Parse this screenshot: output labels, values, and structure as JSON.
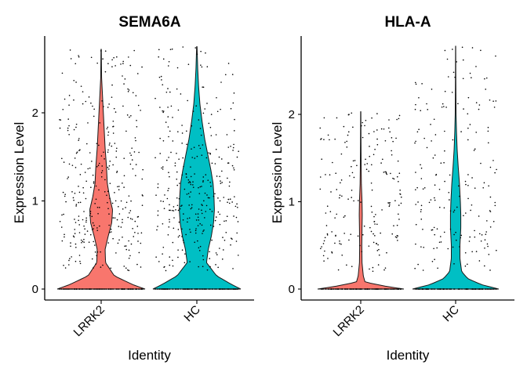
{
  "chart_data": [
    {
      "type": "violin",
      "title": "SEMA6A",
      "xlabel": "Identity",
      "ylabel": "Expression Level",
      "ylim": [
        0,
        2.75
      ],
      "yticks": [
        0,
        1,
        2
      ],
      "categories": [
        "LRRK2",
        "HC"
      ],
      "colors": [
        "#F8766D",
        "#00BFC4"
      ],
      "series": [
        {
          "category": "LRRK2",
          "max": 2.72,
          "density": [
            [
              0,
              1.0
            ],
            [
              0.05,
              0.72
            ],
            [
              0.15,
              0.3
            ],
            [
              0.3,
              0.1
            ],
            [
              0.45,
              0.09
            ],
            [
              0.6,
              0.16
            ],
            [
              0.75,
              0.24
            ],
            [
              0.9,
              0.26
            ],
            [
              1.05,
              0.19
            ],
            [
              1.2,
              0.14
            ],
            [
              1.4,
              0.12
            ],
            [
              1.6,
              0.09
            ],
            [
              1.8,
              0.07
            ],
            [
              2.0,
              0.05
            ],
            [
              2.2,
              0.03
            ],
            [
              2.4,
              0.01
            ],
            [
              2.72,
              0.004
            ]
          ]
        },
        {
          "category": "HC",
          "max": 2.75,
          "density": [
            [
              0,
              1.0
            ],
            [
              0.05,
              0.8
            ],
            [
              0.15,
              0.45
            ],
            [
              0.3,
              0.22
            ],
            [
              0.45,
              0.26
            ],
            [
              0.6,
              0.33
            ],
            [
              0.75,
              0.38
            ],
            [
              0.9,
              0.4
            ],
            [
              1.05,
              0.39
            ],
            [
              1.2,
              0.37
            ],
            [
              1.35,
              0.32
            ],
            [
              1.5,
              0.26
            ],
            [
              1.7,
              0.18
            ],
            [
              1.9,
              0.12
            ],
            [
              2.1,
              0.07
            ],
            [
              2.3,
              0.04
            ],
            [
              2.5,
              0.02
            ],
            [
              2.75,
              0.005
            ]
          ]
        }
      ]
    },
    {
      "type": "violin",
      "title": "HLA-A",
      "xlabel": "Identity",
      "ylabel": "Expression Level",
      "ylim": [
        0,
        2.8
      ],
      "yticks": [
        0,
        1,
        2
      ],
      "categories": [
        "LRRK2",
        "HC"
      ],
      "colors": [
        "#F8766D",
        "#00BFC4"
      ],
      "series": [
        {
          "category": "LRRK2",
          "max": 2.03,
          "density": [
            [
              0,
              1.0
            ],
            [
              0.03,
              0.6
            ],
            [
              0.08,
              0.1
            ],
            [
              0.15,
              0.06
            ],
            [
              0.3,
              0.03
            ],
            [
              0.5,
              0.025
            ],
            [
              0.7,
              0.03
            ],
            [
              0.85,
              0.035
            ],
            [
              1.0,
              0.03
            ],
            [
              1.2,
              0.015
            ],
            [
              1.4,
              0.01
            ],
            [
              1.7,
              0.006
            ],
            [
              2.03,
              0.003
            ]
          ]
        },
        {
          "category": "HC",
          "max": 2.78,
          "density": [
            [
              0,
              1.0
            ],
            [
              0.05,
              0.6
            ],
            [
              0.12,
              0.28
            ],
            [
              0.2,
              0.14
            ],
            [
              0.35,
              0.1
            ],
            [
              0.5,
              0.1
            ],
            [
              0.7,
              0.12
            ],
            [
              0.85,
              0.12
            ],
            [
              1.0,
              0.11
            ],
            [
              1.2,
              0.09
            ],
            [
              1.4,
              0.06
            ],
            [
              1.6,
              0.035
            ],
            [
              1.8,
              0.02
            ],
            [
              2.0,
              0.01
            ],
            [
              2.4,
              0.005
            ],
            [
              2.78,
              0.002
            ]
          ]
        }
      ]
    }
  ]
}
